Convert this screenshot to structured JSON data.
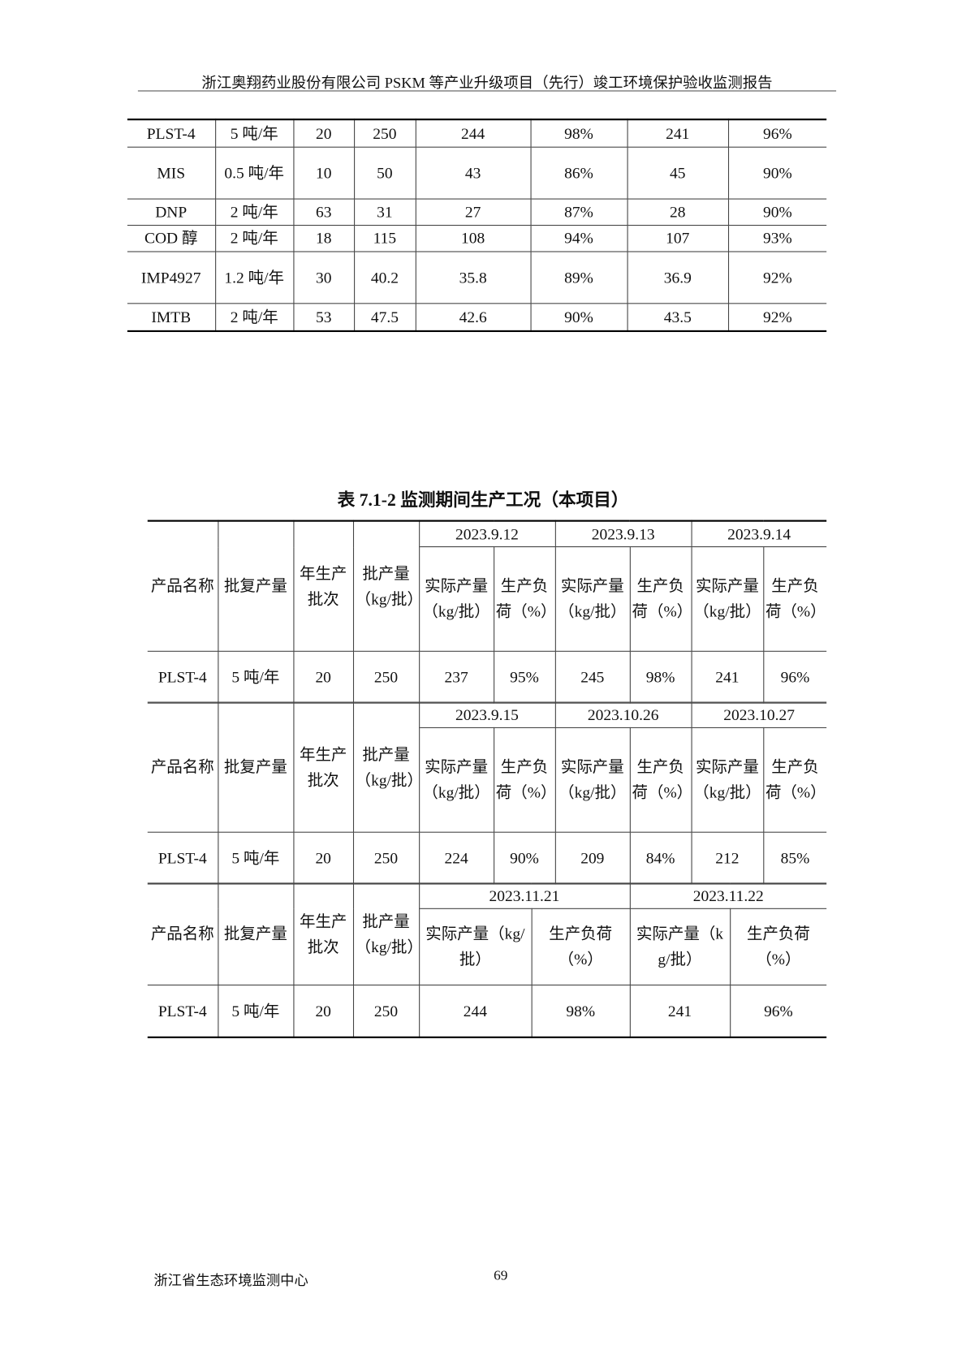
{
  "header": {
    "title": "浙江奥翔药业股份有限公司 PSKM 等产业升级项目（先行）竣工环境保护验收监测报告"
  },
  "table1": {
    "rows": [
      [
        "PLST-4",
        "5 吨/年",
        "20",
        "250",
        "244",
        "98%",
        "241",
        "96%"
      ],
      [
        "MIS",
        "0.5 吨/年",
        "10",
        "50",
        "43",
        "86%",
        "45",
        "90%"
      ],
      [
        "DNP",
        "2 吨/年",
        "63",
        "31",
        "27",
        "87%",
        "28",
        "90%"
      ],
      [
        "COD 醇",
        "2 吨/年",
        "18",
        "115",
        "108",
        "94%",
        "107",
        "93%"
      ],
      [
        "IMP4927",
        "1.2 吨/年",
        "30",
        "40.2",
        "35.8",
        "89%",
        "36.9",
        "92%"
      ],
      [
        "IMTB",
        "2 吨/年",
        "53",
        "47.5",
        "42.6",
        "90%",
        "43.5",
        "92%"
      ]
    ]
  },
  "table2": {
    "caption": "表 7.1-2  监测期间生产工况（本项目）",
    "headers": [
      "产品名称",
      "批复产量",
      "年生产批次",
      "批产量（kg/批）"
    ],
    "sub_headers": [
      "实际产量（kg/批）",
      "生产负荷（%）"
    ],
    "sections": [
      {
        "dates": [
          "2023.9.12",
          "2023.9.13",
          "2023.9.14"
        ],
        "row": [
          "PLST-4",
          "5 吨/年",
          "20",
          "250",
          "237",
          "95%",
          "245",
          "98%",
          "241",
          "96%"
        ]
      },
      {
        "dates": [
          "2023.9.15",
          "2023.10.26",
          "2023.10.27"
        ],
        "row": [
          "PLST-4",
          "5 吨/年",
          "20",
          "250",
          "224",
          "90%",
          "209",
          "84%",
          "212",
          "85%"
        ]
      },
      {
        "dates": [
          "2023.11.21",
          "2023.11.22"
        ],
        "row": [
          "PLST-4",
          "5 吨/年",
          "20",
          "250",
          "244",
          "98%",
          "241",
          "96%"
        ]
      }
    ]
  },
  "footer": {
    "org": "浙江省生态环境监测中心",
    "page": "69"
  }
}
